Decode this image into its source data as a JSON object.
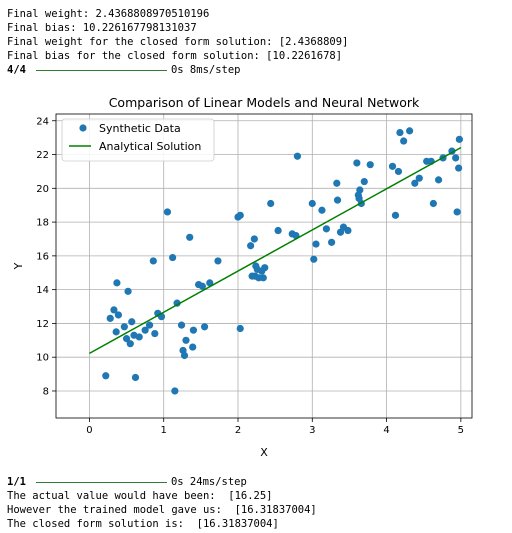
{
  "output_top": {
    "lines": [
      "Final weight: 2.4368808970510196",
      "Final bias: 10.226167798131037",
      "Final weight for the closed form solution: [2.4368809]",
      "Final bias for the closed form solution: [10.2261678]"
    ],
    "progress": {
      "step": "4/4",
      "timing": "0s 8ms/step",
      "fraction": 1.0
    }
  },
  "output_bottom": {
    "progress": {
      "step": "1/1",
      "timing": "0s 24ms/step",
      "fraction": 1.0
    },
    "lines": [
      "The actual value would have been:  [16.25]",
      "However the trained model gave us:  [16.31837004]",
      "The closed form solution is:  [16.31837004]"
    ]
  },
  "colors": {
    "points": "#1f77b4",
    "line": "#008000",
    "progress": "#2e7d32"
  },
  "chart_data": {
    "type": "scatter",
    "title": "Comparison of Linear Models and Neural Network",
    "xlabel": "X",
    "ylabel": "Y",
    "xlim": [
      -0.45,
      5.15
    ],
    "ylim": [
      6.4,
      24.4
    ],
    "xticks": [
      0,
      1,
      2,
      3,
      4,
      5
    ],
    "yticks": [
      8,
      10,
      12,
      14,
      16,
      18,
      20,
      22,
      24
    ],
    "grid": true,
    "legend_position": "upper-left",
    "series": [
      {
        "name": "Synthetic Data",
        "kind": "scatter",
        "x": [
          0.22,
          0.28,
          0.33,
          0.36,
          0.37,
          0.39,
          0.47,
          0.5,
          0.52,
          0.55,
          0.57,
          0.6,
          0.62,
          0.67,
          0.75,
          0.81,
          0.86,
          0.88,
          0.92,
          0.97,
          1.05,
          1.12,
          1.15,
          1.18,
          1.24,
          1.26,
          1.28,
          1.3,
          1.35,
          1.39,
          1.4,
          1.47,
          1.52,
          1.55,
          1.62,
          1.73,
          2.0,
          2.03,
          2.03,
          2.17,
          2.19,
          2.22,
          2.23,
          2.24,
          2.26,
          2.28,
          2.32,
          2.34,
          2.36,
          2.44,
          2.54,
          2.73,
          2.78,
          2.8,
          3.0,
          3.02,
          3.05,
          3.13,
          3.19,
          3.26,
          3.33,
          3.34,
          3.38,
          3.42,
          3.48,
          3.6,
          3.62,
          3.63,
          3.64,
          3.66,
          3.7,
          3.78,
          4.08,
          4.12,
          4.16,
          4.18,
          4.23,
          4.31,
          4.38,
          4.44,
          4.54,
          4.6,
          4.63,
          4.7,
          4.76,
          4.88,
          4.93,
          4.95,
          4.97,
          4.98
        ],
        "y": [
          8.9,
          12.3,
          12.8,
          11.5,
          14.4,
          12.5,
          11.8,
          11.1,
          13.9,
          10.8,
          12.1,
          11.3,
          8.8,
          11.2,
          11.6,
          11.9,
          15.7,
          11.4,
          12.6,
          12.4,
          18.6,
          15.9,
          8.0,
          13.2,
          11.9,
          10.4,
          10.1,
          11.0,
          17.1,
          10.6,
          11.6,
          14.3,
          14.2,
          11.8,
          14.4,
          15.7,
          18.3,
          11.7,
          18.4,
          16.6,
          14.8,
          17.0,
          14.8,
          15.4,
          15.2,
          14.7,
          15.1,
          14.7,
          15.3,
          19.1,
          17.5,
          17.3,
          17.2,
          21.9,
          19.1,
          15.8,
          16.7,
          18.7,
          17.6,
          16.8,
          20.3,
          19.3,
          17.4,
          17.7,
          17.5,
          21.5,
          19.6,
          19.4,
          19.9,
          19.1,
          20.4,
          21.4,
          21.3,
          18.4,
          21.0,
          23.3,
          22.8,
          23.4,
          20.3,
          20.6,
          21.6,
          21.6,
          19.1,
          20.5,
          21.8,
          22.2,
          21.8,
          18.6,
          21.2,
          22.9
        ]
      },
      {
        "name": "Analytical Solution",
        "kind": "line",
        "x": [
          0,
          5
        ],
        "y": [
          10.226,
          22.41
        ]
      }
    ]
  }
}
